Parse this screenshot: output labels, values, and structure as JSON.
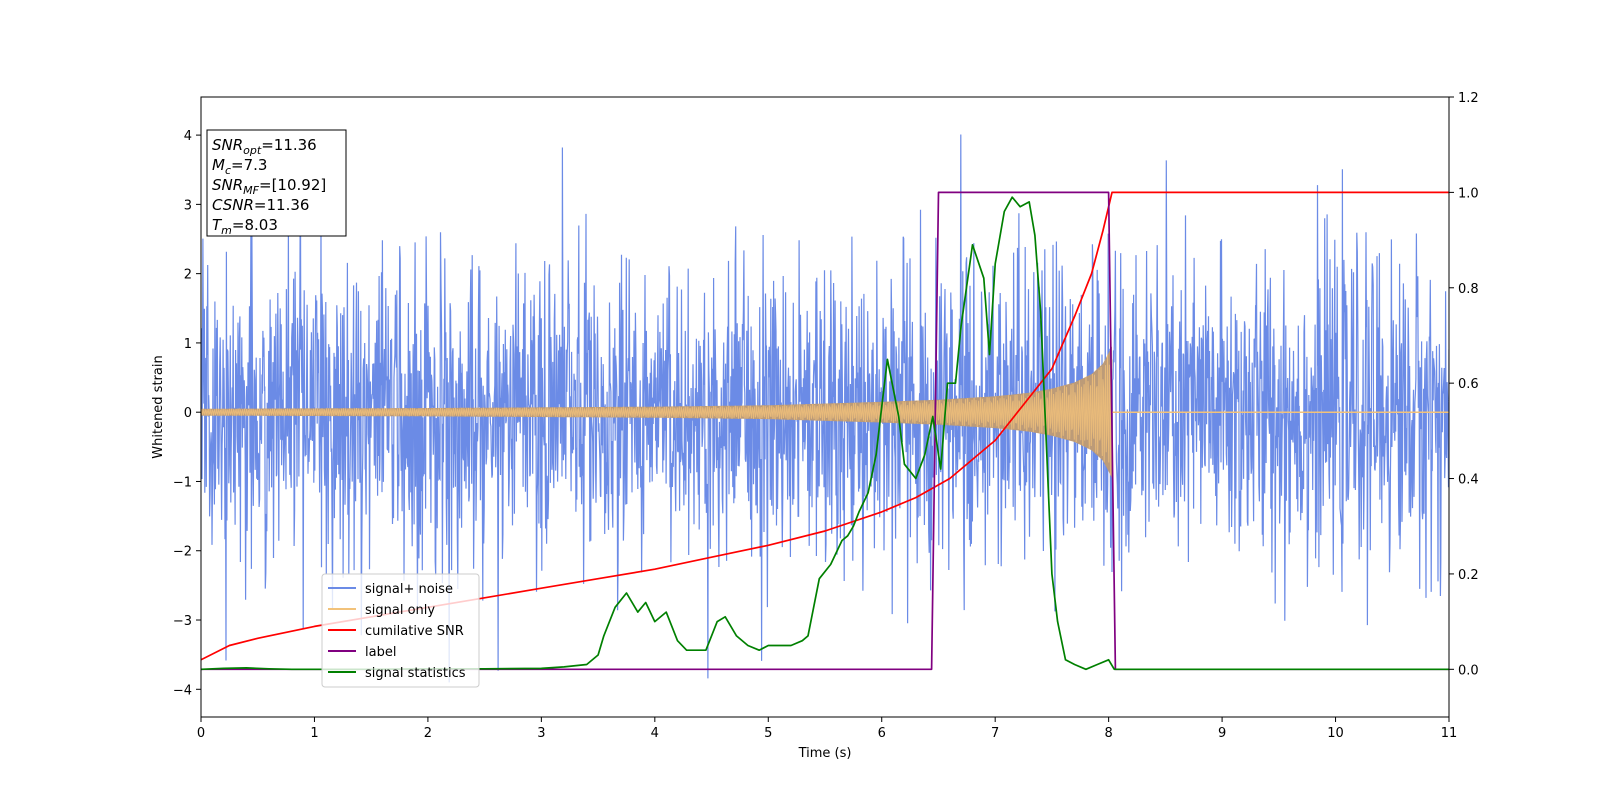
{
  "chart_data": {
    "type": "line",
    "title": "",
    "xlabel": "Time (s)",
    "ylabel": "Whitened strain",
    "ylabel_right": "",
    "xlim": [
      0,
      11
    ],
    "ylim": [
      -4.4,
      4.55
    ],
    "ylim_right": [
      -0.1,
      1.2
    ],
    "x_ticks": [
      0,
      1,
      2,
      3,
      4,
      5,
      6,
      7,
      8,
      9,
      10,
      11
    ],
    "y_ticks": [
      -4,
      -3,
      -2,
      -1,
      0,
      1,
      2,
      3,
      4
    ],
    "y_ticks_right": [
      "0.0",
      "0.2",
      "0.4",
      "0.6",
      "0.8",
      "1.0",
      "1.2"
    ],
    "grid": false,
    "legend_position": "lower-left",
    "colors": {
      "noise": "#6b8be6",
      "signal_only": "#f2c27a",
      "signal_only_fill": "#bc9b78",
      "cumulative_snr": "#ff0000",
      "label": "#800080",
      "signal_statistics": "#008000"
    },
    "annotation": {
      "lines": [
        {
          "base": "SNR",
          "sub": "opt",
          "value": "=11.36"
        },
        {
          "base": "M",
          "sub": "c",
          "value": "=7.3"
        },
        {
          "base": "SNR",
          "sub": "MF",
          "value": "=[10.92]"
        },
        {
          "base": "CSNR",
          "sub": "",
          "value": "=11.36"
        },
        {
          "base": "T",
          "sub": "m",
          "value": "=8.03"
        }
      ]
    },
    "series": [
      {
        "name": "signal+ noise",
        "axis": "left",
        "kind": "noise",
        "noise_sigma": 1.1,
        "x_range": [
          0,
          11
        ]
      },
      {
        "name": "signal only",
        "axis": "left",
        "kind": "chirp_envelope",
        "envelope": {
          "x": [
            0,
            1,
            2,
            3,
            4,
            5,
            6,
            6.5,
            7,
            7.3,
            7.5,
            7.7,
            7.85,
            7.95,
            8.03
          ],
          "amp": [
            0.05,
            0.055,
            0.06,
            0.07,
            0.08,
            0.1,
            0.15,
            0.18,
            0.23,
            0.28,
            0.34,
            0.43,
            0.55,
            0.7,
            0.95
          ]
        },
        "end_x": 8.03
      },
      {
        "name": "cumilative SNR",
        "axis": "right",
        "x": [
          0,
          0.25,
          0.5,
          1,
          1.5,
          2,
          2.5,
          3,
          3.5,
          4,
          4.5,
          5,
          5.5,
          6,
          6.3,
          6.6,
          7,
          7.3,
          7.5,
          7.7,
          7.85,
          7.95,
          8.03,
          8.05,
          11
        ],
        "y": [
          0.02,
          0.05,
          0.065,
          0.09,
          0.11,
          0.13,
          0.15,
          0.17,
          0.19,
          0.21,
          0.235,
          0.26,
          0.29,
          0.33,
          0.36,
          0.4,
          0.48,
          0.57,
          0.63,
          0.74,
          0.83,
          0.92,
          1.0,
          1.0,
          1.0
        ]
      },
      {
        "name": "label",
        "axis": "right",
        "x": [
          0,
          6.44,
          6.5,
          8.0,
          8.06,
          11
        ],
        "y": [
          0.0,
          0.0,
          1.0,
          1.0,
          0.0,
          0.0
        ]
      },
      {
        "name": "signal statistics",
        "axis": "right",
        "x": [
          0,
          0.2,
          0.4,
          0.6,
          0.8,
          1,
          1.5,
          2,
          2.5,
          3,
          3.2,
          3.4,
          3.5,
          3.55,
          3.65,
          3.75,
          3.85,
          3.92,
          4.0,
          4.1,
          4.2,
          4.28,
          4.35,
          4.45,
          4.55,
          4.62,
          4.72,
          4.82,
          4.92,
          5.0,
          5.1,
          5.2,
          5.3,
          5.35,
          5.45,
          5.55,
          5.65,
          5.7,
          5.75,
          5.8,
          5.88,
          5.95,
          6.0,
          6.05,
          6.15,
          6.2,
          6.3,
          6.38,
          6.45,
          6.52,
          6.58,
          6.65,
          6.7,
          6.8,
          6.9,
          6.95,
          7.0,
          7.08,
          7.15,
          7.22,
          7.3,
          7.35,
          7.4,
          7.45,
          7.5,
          7.55,
          7.62,
          7.7,
          7.8,
          7.9,
          8.0,
          8.05,
          8.1,
          9,
          10,
          11
        ],
        "y": [
          0.0,
          0.002,
          0.003,
          0.001,
          0.0,
          0.0,
          0.0,
          0.001,
          0.001,
          0.002,
          0.005,
          0.01,
          0.03,
          0.07,
          0.13,
          0.16,
          0.12,
          0.14,
          0.1,
          0.12,
          0.06,
          0.04,
          0.04,
          0.04,
          0.1,
          0.11,
          0.07,
          0.05,
          0.04,
          0.05,
          0.05,
          0.05,
          0.06,
          0.07,
          0.19,
          0.22,
          0.27,
          0.28,
          0.3,
          0.33,
          0.37,
          0.45,
          0.55,
          0.65,
          0.53,
          0.43,
          0.4,
          0.45,
          0.53,
          0.42,
          0.6,
          0.6,
          0.72,
          0.89,
          0.82,
          0.66,
          0.85,
          0.96,
          0.99,
          0.97,
          0.98,
          0.91,
          0.75,
          0.48,
          0.2,
          0.1,
          0.02,
          0.01,
          0.0,
          0.01,
          0.02,
          0.0,
          0.0,
          0.0,
          0.0,
          0.0
        ]
      }
    ]
  }
}
